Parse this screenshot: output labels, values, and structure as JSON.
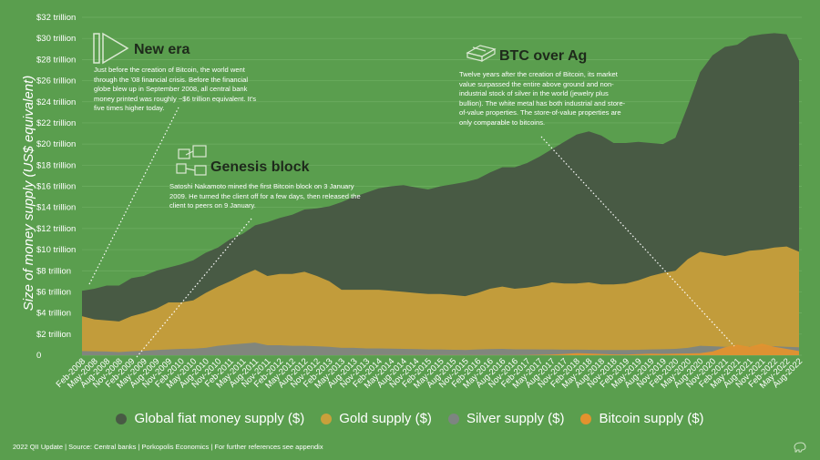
{
  "chart_data": {
    "type": "area",
    "ylabel": "Size of money supply (US$ equivalent)",
    "ylim": [
      0,
      32
    ],
    "y_ticks": [
      "0",
      "$2 trillion",
      "$4 trillion",
      "$6 trillion",
      "$8 trillion",
      "$10 trillion",
      "$12 trillion",
      "$14 trillion",
      "$16 trillion",
      "$18 trillion",
      "$20 trillion",
      "$22 trillion",
      "$24 trillion",
      "$26 trillion",
      "$28 trillion",
      "$30 trillion",
      "$32 trillion"
    ],
    "x_ticks": [
      "Feb-2008",
      "May-2008",
      "Aug-2008",
      "Nov-2008",
      "Feb-2009",
      "May-2009",
      "Aug-2009",
      "Nov-2009",
      "Feb-2010",
      "May-2010",
      "Aug-2010",
      "Nov-2010",
      "Feb-2011",
      "May-2011",
      "Aug-2011",
      "Nov-2011",
      "Feb-2012",
      "May-2012",
      "Aug-2012",
      "Nov-2012",
      "Feb-2013",
      "May-2013",
      "Aug-2013",
      "Nov-2013",
      "Feb-2014",
      "May-2014",
      "Aug-2014",
      "Nov-2014",
      "Feb-2015",
      "May-2015",
      "Aug-2015",
      "Nov-2015",
      "Feb-2016",
      "May-2016",
      "Aug-2016",
      "Nov-2016",
      "Feb-2017",
      "May-2017",
      "Aug-2017",
      "Nov-2017",
      "Feb-2018",
      "May-2018",
      "Aug-2018",
      "Nov-2018",
      "Feb-2019",
      "May-2019",
      "Aug-2019",
      "Nov-2019",
      "Feb-2020",
      "May-2020",
      "Aug-2020",
      "Nov-2020",
      "Feb-2021",
      "May-2021",
      "Aug-2021",
      "Nov-2021",
      "Feb-2022",
      "May-2022",
      "Aug-2022"
    ],
    "series": [
      {
        "name": "Global fiat money supply ($)",
        "color": "#485a44",
        "values": [
          6.1,
          6.3,
          6.6,
          6.6,
          7.3,
          7.5,
          8.0,
          8.3,
          8.6,
          9.0,
          9.7,
          10.2,
          11.0,
          11.5,
          12.3,
          12.6,
          13.0,
          13.3,
          13.8,
          13.9,
          14.1,
          14.5,
          15.0,
          15.4,
          15.8,
          16.0,
          16.1,
          15.9,
          15.7,
          16.0,
          16.2,
          16.4,
          16.7,
          17.3,
          17.8,
          17.8,
          18.2,
          18.8,
          19.5,
          20.2,
          20.9,
          21.2,
          20.8,
          20.1,
          20.1,
          20.2,
          20.1,
          20.0,
          20.6,
          23.6,
          26.8,
          28.4,
          29.2,
          29.4,
          30.2,
          30.4,
          30.5,
          30.4,
          27.9
        ]
      },
      {
        "name": "Gold supply ($)",
        "color": "#c9a03b",
        "values": [
          3.7,
          3.4,
          3.3,
          3.2,
          3.7,
          4.0,
          4.4,
          5.0,
          5.0,
          5.2,
          5.9,
          6.5,
          7.0,
          7.6,
          8.1,
          7.5,
          7.7,
          7.7,
          7.9,
          7.5,
          7.0,
          6.2,
          6.2,
          6.2,
          6.2,
          6.1,
          6.0,
          5.9,
          5.8,
          5.8,
          5.7,
          5.6,
          5.9,
          6.3,
          6.5,
          6.3,
          6.4,
          6.6,
          6.9,
          6.8,
          6.8,
          6.9,
          6.7,
          6.7,
          6.8,
          7.1,
          7.5,
          7.8,
          8.0,
          9.1,
          9.8,
          9.6,
          9.4,
          9.6,
          9.9,
          10.0,
          10.2,
          10.3,
          9.8
        ]
      },
      {
        "name": "Silver supply ($)",
        "color": "#7d8581",
        "values": [
          0.4,
          0.38,
          0.35,
          0.3,
          0.38,
          0.42,
          0.5,
          0.55,
          0.6,
          0.62,
          0.7,
          0.9,
          1.0,
          1.1,
          1.2,
          0.95,
          0.95,
          0.9,
          0.9,
          0.85,
          0.8,
          0.7,
          0.7,
          0.65,
          0.65,
          0.63,
          0.6,
          0.58,
          0.55,
          0.55,
          0.52,
          0.5,
          0.55,
          0.58,
          0.6,
          0.56,
          0.56,
          0.55,
          0.55,
          0.53,
          0.53,
          0.52,
          0.5,
          0.5,
          0.5,
          0.52,
          0.55,
          0.57,
          0.6,
          0.7,
          0.9,
          0.85,
          0.8,
          0.8,
          0.82,
          0.85,
          0.85,
          0.8,
          0.75
        ]
      },
      {
        "name": "Bitcoin supply ($)",
        "color": "#e2922e",
        "values": [
          0,
          0,
          0,
          0,
          0,
          0,
          0,
          0,
          0,
          0,
          0,
          0,
          0,
          0,
          0,
          0,
          0,
          0,
          0,
          0,
          0,
          0,
          0.01,
          0.01,
          0.01,
          0.01,
          0.01,
          0.01,
          0.01,
          0.01,
          0.01,
          0.01,
          0.01,
          0.01,
          0.01,
          0.01,
          0.02,
          0.04,
          0.07,
          0.12,
          0.2,
          0.16,
          0.12,
          0.08,
          0.07,
          0.1,
          0.15,
          0.13,
          0.15,
          0.17,
          0.2,
          0.35,
          0.75,
          1.0,
          0.8,
          1.1,
          0.8,
          0.6,
          0.4
        ]
      }
    ],
    "annotations": [
      {
        "id": "new-era",
        "title": "New era",
        "text": "Just before the creation of Bitcoin, the world went through the '08 financial crisis. Before the financial globe blew up in September 2008, all central bank money printed was roughly ~$6 trillion equivalent. It's five times higher today."
      },
      {
        "id": "genesis-block",
        "title": "Genesis block",
        "text": "Satoshi Nakamoto mined the first Bitcoin block on 3 January 2009. He turned the client off for a few days, then released the client to peers on 9 January."
      },
      {
        "id": "btc-over-ag",
        "title": "BTC over Ag",
        "text": "Twelve years after the creation of Bitcoin, its market value surpassed the entire above ground and non-industrial stock of silver in the world (jewelry plus bullion). The white metal has both industrial and store-of-value properties. The store-of-value properties are only comparable to bitcoins."
      }
    ]
  },
  "footer": "2022 QII Update | Source: Central banks | Porkopolis Economics | For further references see appendix"
}
